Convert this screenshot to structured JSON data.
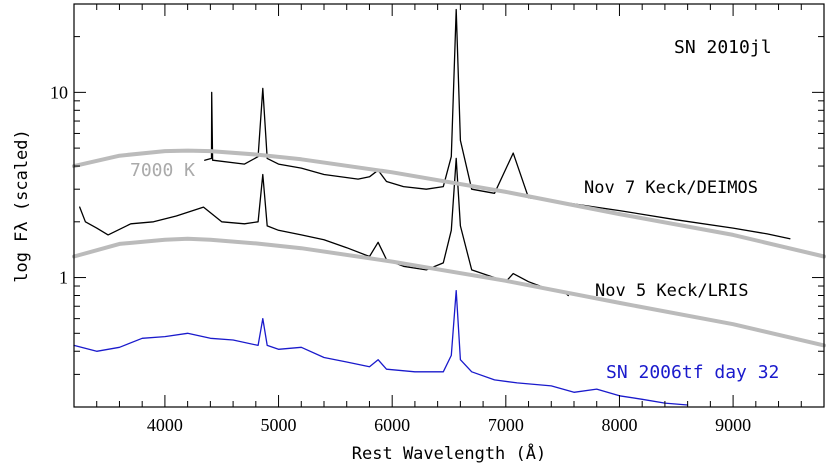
{
  "chart_data": {
    "type": "line",
    "title": "SN 2010jl",
    "xlabel": "Rest Wavelength (Å)",
    "ylabel": "log Fλ (scaled)",
    "xlim": [
      3200,
      9800
    ],
    "ylim": [
      0.2,
      30
    ],
    "y_scale": "log",
    "grid": false,
    "x_ticks": [
      4000,
      5000,
      6000,
      7000,
      8000,
      9000
    ],
    "x_tick_labels": [
      "4000",
      "5000",
      "6000",
      "7000",
      "8000",
      "9000"
    ],
    "y_ticks": [
      1,
      10
    ],
    "y_tick_labels": [
      "1",
      "10"
    ],
    "series": [
      {
        "name": "Nov 7 Keck/DEIMOS",
        "color": "#000000",
        "x": [
          4350,
          4410,
          4412,
          4420,
          4700,
          4820,
          4861,
          4900,
          5000,
          5200,
          5400,
          5700,
          5800,
          5876,
          5950,
          6100,
          6300,
          6450,
          6520,
          6563,
          6600,
          6700,
          6900,
          7065,
          7200,
          7500,
          8000,
          8500,
          9000,
          9300,
          9500
        ],
        "values": [
          4.3,
          4.4,
          10.0,
          4.3,
          4.1,
          4.5,
          10.5,
          4.4,
          4.1,
          3.9,
          3.6,
          3.4,
          3.5,
          3.8,
          3.3,
          3.1,
          3.0,
          3.1,
          4.5,
          28.0,
          5.5,
          3.0,
          2.85,
          4.7,
          2.7,
          2.55,
          2.3,
          2.05,
          1.85,
          1.72,
          1.62
        ]
      },
      {
        "name": "Nov 5 Keck/LRIS",
        "color": "#000000",
        "x": [
          3250,
          3300,
          3400,
          3500,
          3700,
          3900,
          4100,
          4340,
          4500,
          4700,
          4820,
          4861,
          4900,
          5000,
          5200,
          5400,
          5600,
          5800,
          5876,
          5950,
          6100,
          6300,
          6450,
          6520,
          6563,
          6600,
          6700,
          6900,
          7000,
          7065,
          7200,
          7300,
          7400,
          7500,
          7550
        ],
        "values": [
          2.4,
          2.0,
          1.85,
          1.7,
          1.95,
          2.0,
          2.15,
          2.4,
          2.0,
          1.95,
          2.0,
          3.6,
          1.9,
          1.8,
          1.7,
          1.6,
          1.45,
          1.3,
          1.55,
          1.25,
          1.15,
          1.1,
          1.2,
          1.8,
          4.4,
          1.9,
          1.1,
          1.0,
          0.95,
          1.05,
          0.95,
          0.9,
          0.85,
          0.85,
          0.8
        ]
      },
      {
        "name": "SN 2006tf day 32",
        "color": "#1a1acc",
        "x": [
          3200,
          3400,
          3600,
          3800,
          4000,
          4200,
          4400,
          4600,
          4820,
          4861,
          4900,
          5000,
          5200,
          5400,
          5600,
          5800,
          5876,
          5950,
          6200,
          6450,
          6520,
          6563,
          6600,
          6700,
          6900,
          7100,
          7400,
          7600,
          7800,
          8000,
          8200,
          8400,
          8600
        ],
        "values": [
          0.43,
          0.4,
          0.42,
          0.47,
          0.48,
          0.5,
          0.47,
          0.46,
          0.43,
          0.6,
          0.43,
          0.41,
          0.42,
          0.37,
          0.35,
          0.33,
          0.36,
          0.32,
          0.31,
          0.31,
          0.38,
          0.85,
          0.36,
          0.31,
          0.28,
          0.27,
          0.26,
          0.24,
          0.25,
          0.23,
          0.22,
          0.21,
          0.205
        ]
      },
      {
        "name": "7000 K",
        "color": "#bbbbbb",
        "x": [
          3200,
          3600,
          4000,
          4200,
          4400,
          4800,
          5200,
          6000,
          7000,
          8000,
          9000,
          9800
        ],
        "values": [
          4.0,
          4.55,
          4.82,
          4.85,
          4.82,
          4.62,
          4.35,
          3.7,
          2.9,
          2.2,
          1.7,
          1.3
        ]
      },
      {
        "color": "#bbbbbb",
        "x": [
          3200,
          3600,
          4000,
          4200,
          4400,
          4800,
          5200,
          6000,
          7000,
          8000,
          9000,
          9800
        ],
        "values": [
          1.3,
          1.52,
          1.6,
          1.62,
          1.6,
          1.53,
          1.44,
          1.22,
          0.96,
          0.73,
          0.56,
          0.43
        ]
      }
    ],
    "annotations": [
      {
        "text": "SN 2010jl",
        "color": "#000000"
      },
      {
        "text": "7000 K",
        "color": "#aaaaaa"
      },
      {
        "text": "Nov 7 Keck/DEIMOS",
        "color": "#000000"
      },
      {
        "text": "Nov 5 Keck/LRIS",
        "color": "#000000"
      },
      {
        "text": "SN 2006tf day 32",
        "color": "#1a1acc"
      }
    ]
  }
}
